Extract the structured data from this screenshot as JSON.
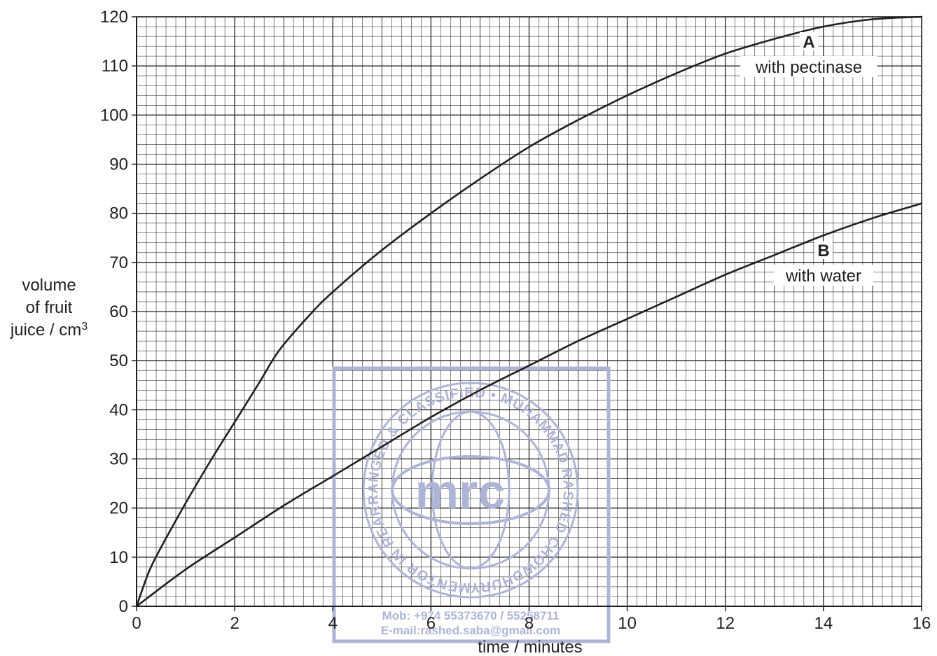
{
  "chart_data": {
    "type": "line",
    "xlabel": "time / minutes",
    "ylabel_lines": [
      "volume",
      "of fruit",
      "juice / cm³"
    ],
    "xlim": [
      0,
      16
    ],
    "ylim": [
      0,
      120
    ],
    "x_ticks": [
      "0",
      "2",
      "4",
      "6",
      "8",
      "10",
      "12",
      "14",
      "16"
    ],
    "y_ticks": [
      "0",
      "10",
      "20",
      "30",
      "40",
      "50",
      "60",
      "70",
      "80",
      "90",
      "100",
      "110",
      "120"
    ],
    "grid": true,
    "series": [
      {
        "letter": "A",
        "label": "with pectinase",
        "x": [
          0,
          0.25,
          0.5,
          1,
          1.5,
          2,
          2.5,
          2.9,
          3.5,
          4,
          5,
          6,
          7,
          8,
          9,
          10,
          11,
          12,
          13,
          14,
          15,
          16
        ],
        "y": [
          0,
          7,
          12,
          21,
          29.5,
          37.5,
          45.5,
          52,
          59,
          64,
          72.5,
          80,
          87,
          93.5,
          99,
          104,
          108.5,
          112.5,
          115.5,
          118,
          119.5,
          120
        ]
      },
      {
        "letter": "B",
        "label": "with water",
        "x": [
          0,
          1,
          2,
          3,
          4,
          5,
          6,
          7,
          8,
          9,
          10,
          11,
          12,
          13,
          14,
          15,
          16
        ],
        "y": [
          0,
          7.5,
          14,
          20.5,
          26.5,
          32.5,
          38.5,
          44,
          49,
          54,
          58.5,
          63,
          67.5,
          71.5,
          75.5,
          79,
          82
        ]
      }
    ]
  },
  "watermark": {
    "logo_text": "mrc",
    "ring_text": "MENTOR IN REARRANGED & CLASSIFIED • MUHAMMAD RASHED CHOWDHURY •",
    "mobile": "Mob:  +974 55373670 / 55258711",
    "email": "E-mail:rashed.saba@gmail.com",
    "color": "#aeb4d6"
  },
  "colors": {
    "ink": "#231f20",
    "minor_grid": "#231f20"
  }
}
